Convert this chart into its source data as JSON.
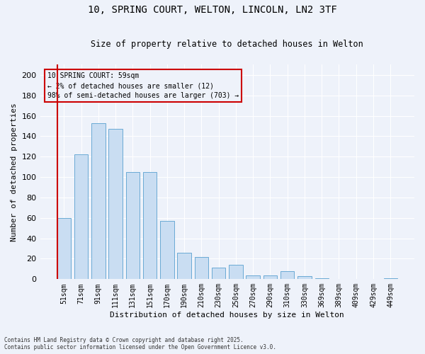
{
  "title1": "10, SPRING COURT, WELTON, LINCOLN, LN2 3TF",
  "title2": "Size of property relative to detached houses in Welton",
  "xlabel": "Distribution of detached houses by size in Welton",
  "ylabel": "Number of detached properties",
  "categories": [
    "51sqm",
    "71sqm",
    "91sqm",
    "111sqm",
    "131sqm",
    "151sqm",
    "170sqm",
    "190sqm",
    "210sqm",
    "230sqm",
    "250sqm",
    "270sqm",
    "290sqm",
    "310sqm",
    "330sqm",
    "369sqm",
    "389sqm",
    "409sqm",
    "429sqm",
    "449sqm"
  ],
  "values": [
    60,
    122,
    153,
    147,
    105,
    105,
    57,
    26,
    22,
    11,
    14,
    4,
    4,
    8,
    3,
    1,
    0,
    0,
    0,
    1
  ],
  "bar_color": "#c9ddf2",
  "bar_edge_color": "#6aaad4",
  "background_color": "#eef2fa",
  "grid_color": "#ffffff",
  "property_label": "10 SPRING COURT: 59sqm",
  "annotation_line1": "← 2% of detached houses are smaller (12)",
  "annotation_line2": "98% of semi-detached houses are larger (703) →",
  "annotation_box_color": "#cc0000",
  "property_line_color": "#cc0000",
  "ylim": [
    0,
    210
  ],
  "yticks": [
    0,
    20,
    40,
    60,
    80,
    100,
    120,
    140,
    160,
    180,
    200
  ],
  "footer1": "Contains HM Land Registry data © Crown copyright and database right 2025.",
  "footer2": "Contains public sector information licensed under the Open Government Licence v3.0."
}
